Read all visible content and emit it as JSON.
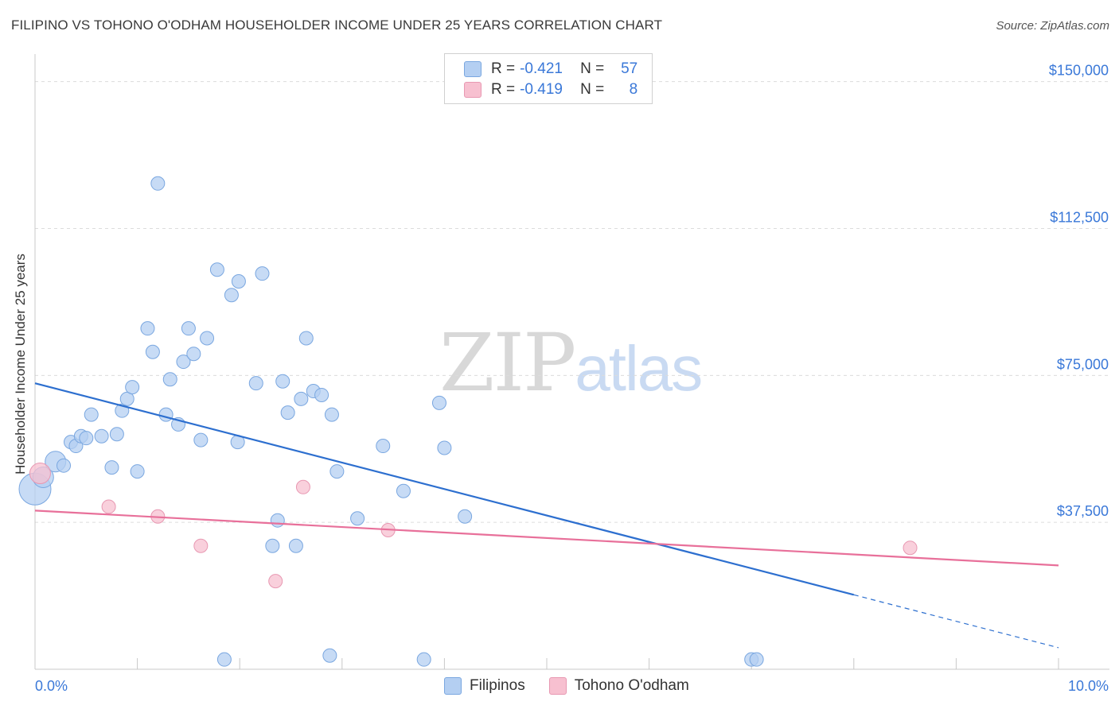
{
  "header": {
    "title": "FILIPINO VS TOHONO O'ODHAM HOUSEHOLDER INCOME UNDER 25 YEARS CORRELATION CHART",
    "source": "Source: ZipAtlas.com"
  },
  "watermark": {
    "zip": "ZIP",
    "atlas": "atlas"
  },
  "legend": {
    "rows": [
      {
        "r_label": "R =",
        "r_value": "-0.421",
        "n_label": "N =",
        "n_value": "57",
        "color": "#b4cff2"
      },
      {
        "r_label": "R =",
        "r_value": "-0.419",
        "n_label": "N =",
        "n_value": "8",
        "color": "#f7c0d0"
      }
    ]
  },
  "bottom_legend": {
    "items": [
      {
        "label": "Filipinos",
        "color": "#b4cff2"
      },
      {
        "label": "Tohono O'odham",
        "color": "#f7c0d0"
      }
    ]
  },
  "colors": {
    "blue_fill": "#b4cff2",
    "blue_stroke": "#7aa7e0",
    "blue_line": "#2d6fcf",
    "pink_fill": "#f7c0d0",
    "pink_stroke": "#e898b2",
    "pink_line": "#e8709a",
    "tick_label": "#3a78d8",
    "grid": "#dcdcdc",
    "axis": "#c8c8c8"
  },
  "chart_data": {
    "type": "scatter",
    "title": "FILIPINO VS TOHONO O'ODHAM HOUSEHOLDER INCOME UNDER 25 YEARS CORRELATION CHART",
    "xlabel": "",
    "ylabel": "Householder Income Under 25 years",
    "xlim": [
      0,
      10
    ],
    "ylim": [
      0,
      155000
    ],
    "x_tick_labels": [
      {
        "value": 0,
        "label": "0.0%"
      },
      {
        "value": 10,
        "label": "10.0%"
      }
    ],
    "y_ticks": [
      {
        "value": 37500,
        "label": "$37,500"
      },
      {
        "value": 75000,
        "label": "$75,000"
      },
      {
        "value": 112500,
        "label": "$112,500"
      },
      {
        "value": 150000,
        "label": "$150,000"
      }
    ],
    "series": [
      {
        "name": "Filipinos",
        "points": [
          [
            0.0,
            46000,
            3
          ],
          [
            0.08,
            49000,
            2
          ],
          [
            0.2,
            53000,
            2
          ],
          [
            0.28,
            52000,
            1
          ],
          [
            0.35,
            58000,
            1
          ],
          [
            0.4,
            57000,
            1
          ],
          [
            0.45,
            59500,
            1
          ],
          [
            0.55,
            65000,
            1
          ],
          [
            0.5,
            59000,
            1
          ],
          [
            0.65,
            59500,
            1
          ],
          [
            0.75,
            51500,
            1
          ],
          [
            0.8,
            60000,
            1
          ],
          [
            0.85,
            66000,
            1
          ],
          [
            0.9,
            69000,
            1
          ],
          [
            0.95,
            72000,
            1
          ],
          [
            1.0,
            50500,
            1
          ],
          [
            1.1,
            87000,
            1
          ],
          [
            1.15,
            81000,
            1
          ],
          [
            1.2,
            124000,
            1
          ],
          [
            1.28,
            65000,
            1
          ],
          [
            1.32,
            74000,
            1
          ],
          [
            1.4,
            62500,
            1
          ],
          [
            1.45,
            78500,
            1
          ],
          [
            1.5,
            87000,
            1
          ],
          [
            1.55,
            80500,
            1
          ],
          [
            1.62,
            58500,
            1
          ],
          [
            1.68,
            84500,
            1
          ],
          [
            1.78,
            102000,
            1
          ],
          [
            1.92,
            95500,
            1
          ],
          [
            1.99,
            99000,
            1
          ],
          [
            1.98,
            58000,
            1
          ],
          [
            2.16,
            73000,
            1
          ],
          [
            2.22,
            101000,
            1
          ],
          [
            2.32,
            31500,
            1
          ],
          [
            2.37,
            38000,
            1
          ],
          [
            2.42,
            73500,
            1
          ],
          [
            2.47,
            65500,
            1
          ],
          [
            2.55,
            31500,
            1
          ],
          [
            2.6,
            69000,
            1
          ],
          [
            2.65,
            84500,
            1
          ],
          [
            2.72,
            71000,
            1
          ],
          [
            2.8,
            70000,
            1
          ],
          [
            2.9,
            65000,
            1
          ],
          [
            2.95,
            50500,
            1
          ],
          [
            3.15,
            38500,
            1
          ],
          [
            3.4,
            57000,
            1
          ],
          [
            3.6,
            45500,
            1
          ],
          [
            3.95,
            68000,
            1
          ],
          [
            4.0,
            56500,
            1
          ],
          [
            4.2,
            39000,
            1
          ],
          [
            1.85,
            2500,
            1
          ],
          [
            2.88,
            3500,
            1
          ],
          [
            3.8,
            2500,
            1
          ],
          [
            7.0,
            2500,
            1
          ],
          [
            7.05,
            2500,
            1
          ]
        ]
      },
      {
        "name": "Tohono O'odham",
        "points": [
          [
            0.05,
            50000,
            2
          ],
          [
            0.72,
            41500,
            1
          ],
          [
            1.2,
            39000,
            1
          ],
          [
            1.62,
            31500,
            1
          ],
          [
            2.35,
            22500,
            1
          ],
          [
            2.62,
            46500,
            1
          ],
          [
            3.45,
            35500,
            1
          ],
          [
            8.55,
            31000,
            1
          ]
        ]
      }
    ],
    "trend_lines": [
      {
        "series": "Filipinos",
        "x_start": 0,
        "y_start": 73000,
        "x_solid_end": 8.0,
        "x_end": 10.0,
        "y_end": 5500
      },
      {
        "series": "Tohono O'odham",
        "x_start": 0,
        "y_start": 40500,
        "x_end": 10.0,
        "y_end": 26500
      }
    ]
  }
}
